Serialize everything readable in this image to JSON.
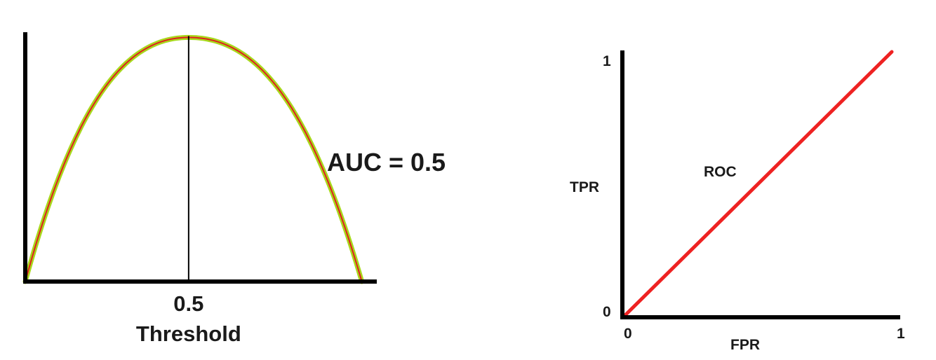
{
  "chart_data": [
    {
      "type": "area",
      "title": "",
      "xlabel": "Threshold",
      "ylabel": "",
      "xlim": [
        0,
        1.05
      ],
      "ylim": [
        0,
        1.05
      ],
      "tick_labels": [
        "0.5"
      ],
      "threshold": 0.5,
      "annotation": "AUC = 0.5",
      "series": [
        {
          "color": "#e02020",
          "x": [
            0.0,
            0.5,
            1.03
          ],
          "y": [
            0.0,
            1.0,
            0.0
          ]
        },
        {
          "color": "#a8d81c",
          "x": [
            0.0,
            0.5,
            1.03
          ],
          "y": [
            0.0,
            1.0,
            0.0
          ]
        }
      ],
      "colors": {
        "threshold_line": "#000000",
        "axis": "#000000"
      }
    },
    {
      "type": "line",
      "title": "",
      "xlabel": "FPR",
      "ylabel": "TPR",
      "xlim": [
        0,
        1
      ],
      "ylim": [
        0,
        1
      ],
      "x_ticks": [
        "0",
        "1"
      ],
      "y_ticks": [
        "0",
        "1"
      ],
      "annotation": "ROC",
      "series": [
        {
          "color": "#ee2222",
          "x": [
            0,
            1
          ],
          "y": [
            0,
            1
          ]
        }
      ]
    }
  ]
}
